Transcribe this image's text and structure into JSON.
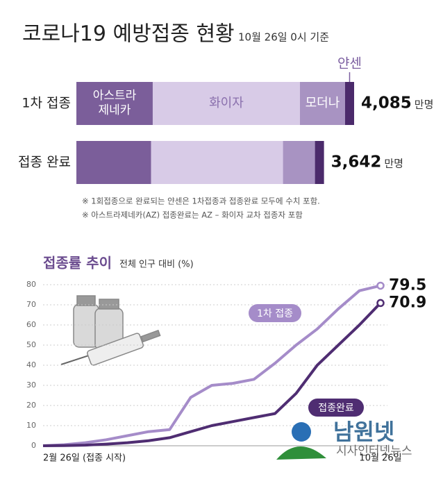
{
  "title": "코로나19 예방접종 현황",
  "subtitle": "10월 26일 0시 기준",
  "chart_data": [
    {
      "type": "stacked_bar",
      "categories": [
        "1차 접종",
        "접종 완료"
      ],
      "series": [
        {
          "name": "아스트라제네카",
          "color": "#7b5e9a",
          "values": [
            1123,
            1099
          ]
        },
        {
          "name": "화이자",
          "color": "#d8cbe7",
          "values": [
            2165,
            1940
          ]
        },
        {
          "name": "모더나",
          "color": "#a893c2",
          "values": [
            664,
            470
          ]
        },
        {
          "name": "얀센",
          "color": "#4b2a6b",
          "values": [
            133,
            133
          ]
        }
      ],
      "totals": [
        4085,
        3642
      ],
      "total_labels": [
        "4,085",
        "3,642"
      ],
      "unit": "만명",
      "notes": [
        "※ 1회접종으로 완료되는 얀센은 1차접종과 접종완료 모두에 수치 포함.",
        "※ 아스트라제네카(AZ) 접종완료는 AZ – 화이자 교차 접종자 포함"
      ]
    },
    {
      "type": "line",
      "title": "접종률 추이",
      "subtitle": "전체 인구 대비 (%)",
      "categories": [
        "2월 26일 (접종 시작)",
        null,
        null,
        null,
        null,
        null,
        null,
        null,
        null,
        null,
        null,
        null,
        null,
        null,
        null,
        null,
        "10월 26일"
      ],
      "series": [
        {
          "name": "1차 접종",
          "color": "#a58cc9",
          "values": [
            0,
            0.5,
            1.5,
            3,
            5,
            7,
            8,
            24,
            30,
            31,
            33,
            41,
            50,
            58,
            68,
            77,
            79.5
          ]
        },
        {
          "name": "접종완료",
          "color": "#4f2d72",
          "values": [
            0,
            0.1,
            0.3,
            0.8,
            1.5,
            2.5,
            4,
            7,
            10,
            12,
            14,
            16,
            26,
            40,
            50,
            60,
            70.9
          ]
        }
      ],
      "ylim": [
        0,
        80
      ],
      "yticks": [
        0,
        10,
        20,
        30,
        40,
        50,
        60,
        70,
        80
      ],
      "grid": true
    }
  ],
  "watermark": {
    "name": "남원넷",
    "tagline": "시사인터넷뉴스"
  }
}
